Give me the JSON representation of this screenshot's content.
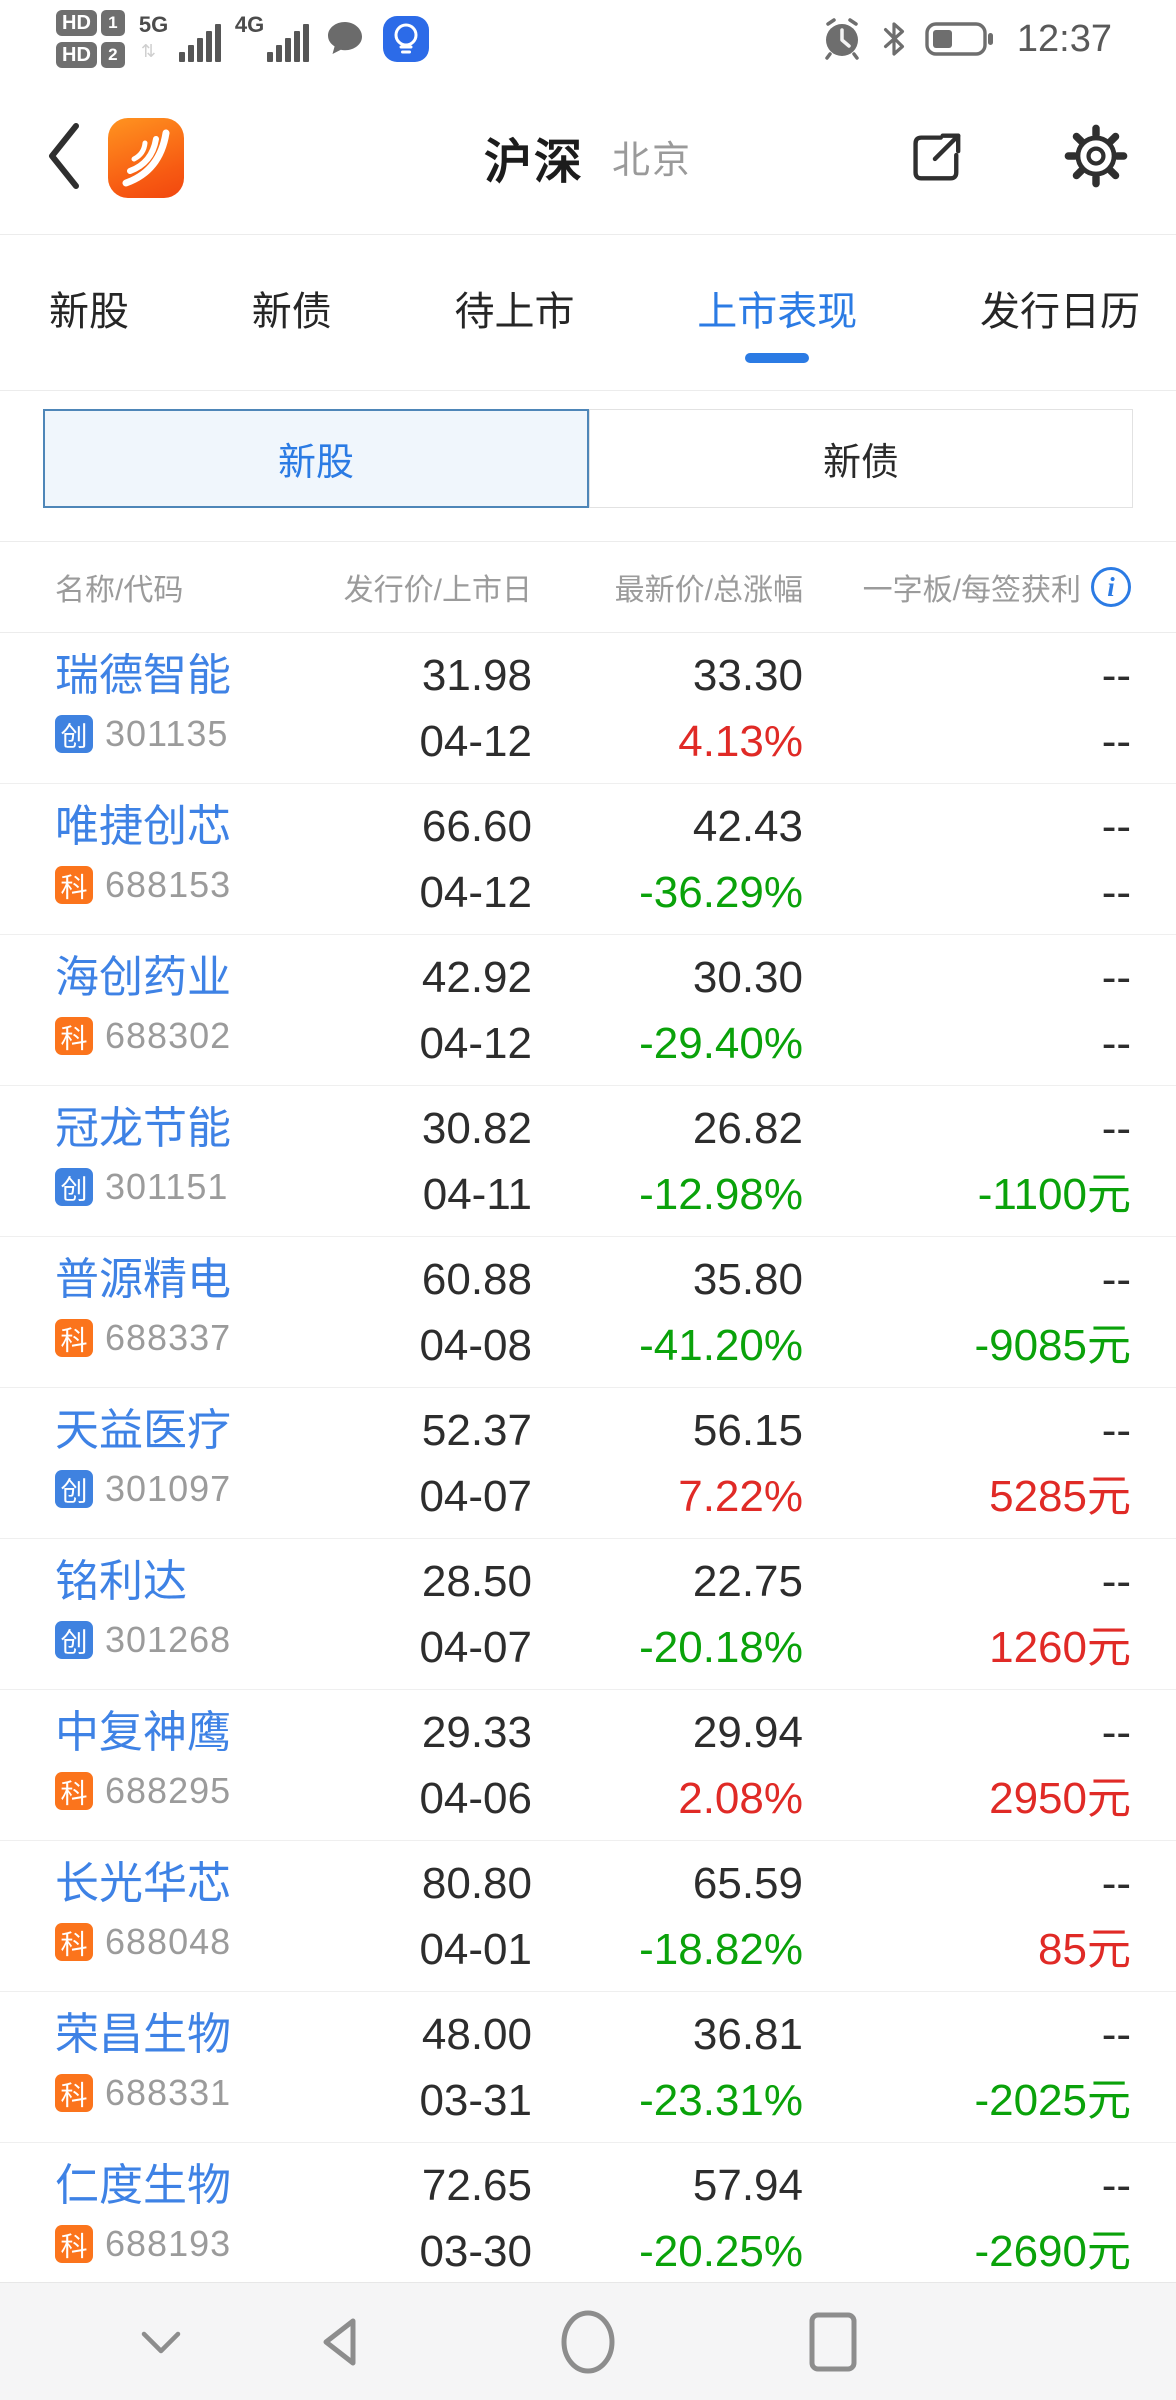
{
  "status_bar": {
    "time": "12:37",
    "sim1": {
      "label": "HD",
      "num": "1"
    },
    "sim2": {
      "label": "HD",
      "num": "2"
    },
    "network1": "5G",
    "network2": "4G",
    "icons": [
      "message-bubble-icon",
      "tips-bulb-icon",
      "alarm-icon",
      "bluetooth-icon",
      "battery-icon"
    ]
  },
  "header": {
    "title": "沪深",
    "subtitle": "北京",
    "icons": [
      "back-icon",
      "app-logo",
      "share-icon",
      "settings-gear-icon"
    ]
  },
  "nav_tabs": {
    "items": [
      {
        "label": "新股",
        "active": false
      },
      {
        "label": "新债",
        "active": false
      },
      {
        "label": "待上市",
        "active": false
      },
      {
        "label": "上市表现",
        "active": true
      },
      {
        "label": "发行日历",
        "active": false
      }
    ]
  },
  "segmented": {
    "options": [
      {
        "label": "新股",
        "selected": true
      },
      {
        "label": "新债",
        "selected": false
      }
    ]
  },
  "table": {
    "headers": [
      "名称/代码",
      "发行价/上市日",
      "最新价/总涨幅",
      "一字板/每签获利"
    ],
    "rows": [
      {
        "name": "瑞德智能",
        "board": "创",
        "board_type": "chinext",
        "code": "301135",
        "issue_price": "31.98",
        "list_date": "04-12",
        "latest_price": "33.30",
        "change": "4.13%",
        "change_dir": "up",
        "limit": "--",
        "profit": "--",
        "profit_dir": "dark"
      },
      {
        "name": "唯捷创芯",
        "board": "科",
        "board_type": "star",
        "code": "688153",
        "issue_price": "66.60",
        "list_date": "04-12",
        "latest_price": "42.43",
        "change": "-36.29%",
        "change_dir": "down",
        "limit": "--",
        "profit": "--",
        "profit_dir": "dark"
      },
      {
        "name": "海创药业",
        "board": "科",
        "board_type": "star",
        "code": "688302",
        "issue_price": "42.92",
        "list_date": "04-12",
        "latest_price": "30.30",
        "change": "-29.40%",
        "change_dir": "down",
        "limit": "--",
        "profit": "--",
        "profit_dir": "dark"
      },
      {
        "name": "冠龙节能",
        "board": "创",
        "board_type": "chinext",
        "code": "301151",
        "issue_price": "30.82",
        "list_date": "04-11",
        "latest_price": "26.82",
        "change": "-12.98%",
        "change_dir": "down",
        "limit": "--",
        "profit": "-1100元",
        "profit_dir": "down"
      },
      {
        "name": "普源精电",
        "board": "科",
        "board_type": "star",
        "code": "688337",
        "issue_price": "60.88",
        "list_date": "04-08",
        "latest_price": "35.80",
        "change": "-41.20%",
        "change_dir": "down",
        "limit": "--",
        "profit": "-9085元",
        "profit_dir": "down"
      },
      {
        "name": "天益医疗",
        "board": "创",
        "board_type": "chinext",
        "code": "301097",
        "issue_price": "52.37",
        "list_date": "04-07",
        "latest_price": "56.15",
        "change": "7.22%",
        "change_dir": "up",
        "limit": "--",
        "profit": "5285元",
        "profit_dir": "up"
      },
      {
        "name": "铭利达",
        "board": "创",
        "board_type": "chinext",
        "code": "301268",
        "issue_price": "28.50",
        "list_date": "04-07",
        "latest_price": "22.75",
        "change": "-20.18%",
        "change_dir": "down",
        "limit": "--",
        "profit": "1260元",
        "profit_dir": "up"
      },
      {
        "name": "中复神鹰",
        "board": "科",
        "board_type": "star",
        "code": "688295",
        "issue_price": "29.33",
        "list_date": "04-06",
        "latest_price": "29.94",
        "change": "2.08%",
        "change_dir": "up",
        "limit": "--",
        "profit": "2950元",
        "profit_dir": "up"
      },
      {
        "name": "长光华芯",
        "board": "科",
        "board_type": "star",
        "code": "688048",
        "issue_price": "80.80",
        "list_date": "04-01",
        "latest_price": "65.59",
        "change": "-18.82%",
        "change_dir": "down",
        "limit": "--",
        "profit": "85元",
        "profit_dir": "up"
      },
      {
        "name": "荣昌生物",
        "board": "科",
        "board_type": "star",
        "code": "688331",
        "issue_price": "48.00",
        "list_date": "03-31",
        "latest_price": "36.81",
        "change": "-23.31%",
        "change_dir": "down",
        "limit": "--",
        "profit": "-2025元",
        "profit_dir": "down"
      },
      {
        "name": "仁度生物",
        "board": "科",
        "board_type": "star",
        "code": "688193",
        "issue_price": "72.65",
        "list_date": "03-30",
        "latest_price": "57.94",
        "change": "-20.25%",
        "change_dir": "down",
        "limit": "--",
        "profit": "-2690元",
        "profit_dir": "down"
      }
    ]
  },
  "nav_bar": {
    "icons": [
      "hide-nav-chevron-icon",
      "back-triangle-icon",
      "home-circle-icon",
      "recents-square-icon"
    ]
  },
  "colors": {
    "up_red": "#e02a26",
    "down_green": "#0aa20a",
    "accent_blue": "#2b7be4",
    "stock_name_blue": "#3e82e5",
    "badge_chinext_blue": "#3f82e0",
    "badge_star_orange": "#fb741c"
  }
}
